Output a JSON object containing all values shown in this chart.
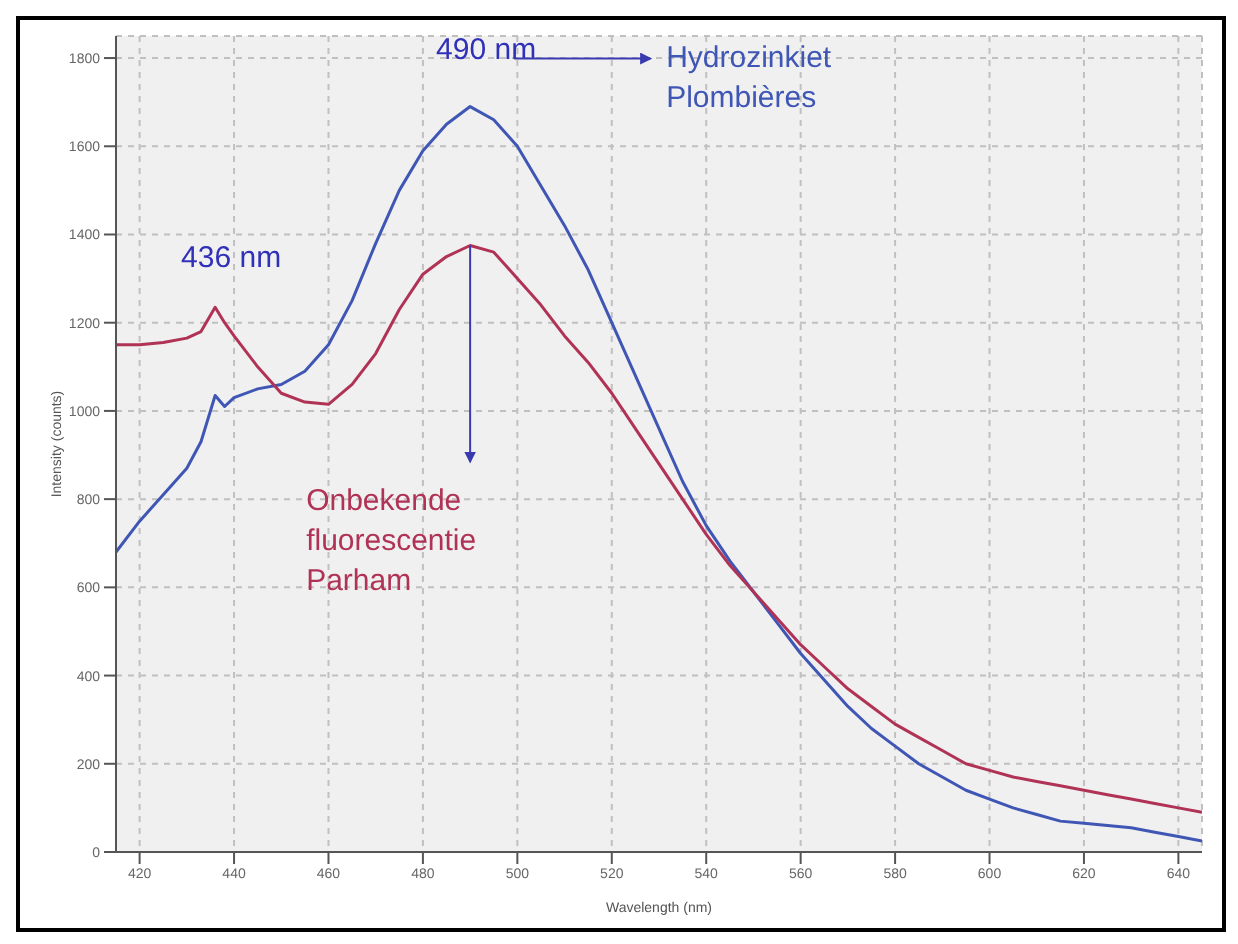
{
  "chart_data": {
    "type": "line",
    "xlabel": "Wavelength (nm)",
    "ylabel": "Intensity (counts)",
    "x": [
      415,
      420,
      425,
      430,
      433,
      436,
      438,
      440,
      445,
      450,
      455,
      460,
      465,
      470,
      475,
      480,
      485,
      490,
      495,
      500,
      505,
      510,
      515,
      520,
      525,
      530,
      535,
      540,
      545,
      550,
      555,
      560,
      565,
      570,
      575,
      580,
      585,
      590,
      595,
      600,
      605,
      610,
      615,
      620,
      625,
      630,
      635,
      640,
      645
    ],
    "series": [
      {
        "name": "Hydrozinkiet Plombières",
        "color": "#3f56b5",
        "values": [
          680,
          750,
          810,
          870,
          930,
          1035,
          1010,
          1030,
          1050,
          1060,
          1090,
          1150,
          1250,
          1380,
          1500,
          1590,
          1650,
          1690,
          1660,
          1600,
          1510,
          1420,
          1320,
          1200,
          1080,
          960,
          840,
          740,
          660,
          590,
          520,
          450,
          390,
          330,
          280,
          240,
          200,
          170,
          140,
          120,
          100,
          85,
          70,
          65,
          60,
          55,
          45,
          35,
          25
        ]
      },
      {
        "name": "Onbekende fluorescentie Parham",
        "color": "#b03356",
        "values": [
          1150,
          1150,
          1155,
          1165,
          1180,
          1235,
          1200,
          1170,
          1100,
          1040,
          1020,
          1015,
          1060,
          1130,
          1230,
          1310,
          1350,
          1375,
          1360,
          1300,
          1240,
          1170,
          1110,
          1040,
          960,
          880,
          800,
          720,
          650,
          590,
          530,
          470,
          420,
          370,
          330,
          290,
          260,
          230,
          200,
          185,
          170,
          160,
          150,
          140,
          130,
          120,
          110,
          100,
          90
        ]
      }
    ],
    "annotations": [
      {
        "text": "490 nm",
        "x": 490,
        "y": 1690
      },
      {
        "text": "436 nm",
        "x": 436,
        "y": 1235
      }
    ],
    "xlim": [
      415,
      645
    ],
    "xticks": [
      420,
      440,
      460,
      480,
      500,
      520,
      540,
      560,
      580,
      600,
      620,
      640
    ],
    "ylim": [
      0,
      1850
    ],
    "yticks": [
      0,
      200,
      400,
      600,
      800,
      1000,
      1200,
      1400,
      1600,
      1800
    ],
    "grid": true,
    "legend": false,
    "marker": "none",
    "line_style": "solid"
  }
}
